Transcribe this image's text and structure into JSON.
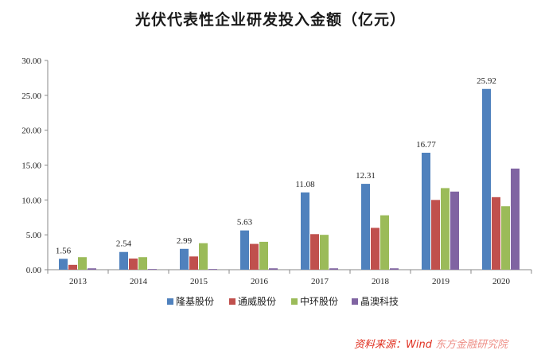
{
  "chart_data": {
    "type": "bar",
    "title": "光伏代表性企业研发投入金额（亿元）",
    "xlabel": "",
    "ylabel": "",
    "ylim": [
      0,
      30
    ],
    "yticks": [
      "0.00",
      "5.00",
      "10.00",
      "15.00",
      "20.00",
      "25.00",
      "30.00"
    ],
    "categories": [
      "2013",
      "2014",
      "2015",
      "2016",
      "2017",
      "2018",
      "2019",
      "2020"
    ],
    "grid": false,
    "legend_position": "bottom",
    "series": [
      {
        "name": "隆基股份",
        "color": "#4f81bd",
        "values": [
          1.56,
          2.54,
          2.99,
          5.63,
          11.08,
          12.31,
          16.77,
          25.92
        ],
        "labels": [
          "1.56",
          "2.54",
          "2.99",
          "5.63",
          "11.08",
          "12.31",
          "16.77",
          "25.92"
        ]
      },
      {
        "name": "通威股份",
        "color": "#c0504d",
        "values": [
          0.7,
          1.6,
          1.9,
          3.7,
          5.1,
          6.0,
          10.0,
          10.4
        ]
      },
      {
        "name": "中环股份",
        "color": "#9bbb59",
        "values": [
          1.8,
          1.8,
          3.8,
          4.0,
          5.0,
          7.8,
          11.7,
          9.1
        ]
      },
      {
        "name": "晶澳科技",
        "color": "#8064a2",
        "values": [
          0.2,
          0.1,
          0.1,
          0.2,
          0.2,
          0.2,
          11.2,
          14.5
        ]
      }
    ]
  },
  "source_text": "资料来源：Wind",
  "source_blurred": "东方金融研究院"
}
